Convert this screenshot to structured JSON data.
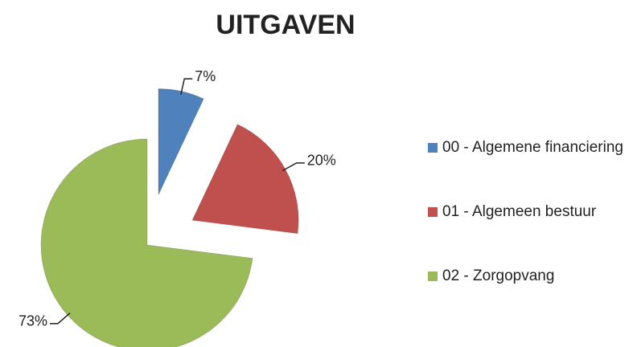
{
  "chart_data": {
    "type": "pie",
    "title": "UITGAVEN",
    "categories": [
      "00 - Algemene financiering",
      "01 - Algemeen bestuur",
      "02 - Zorgopvang"
    ],
    "values": [
      7,
      20,
      73
    ],
    "value_labels": [
      "7%",
      "20%",
      "73%"
    ],
    "colors": [
      "#4f81bd",
      "#c0504d",
      "#9bbb59"
    ],
    "legend": "right"
  }
}
